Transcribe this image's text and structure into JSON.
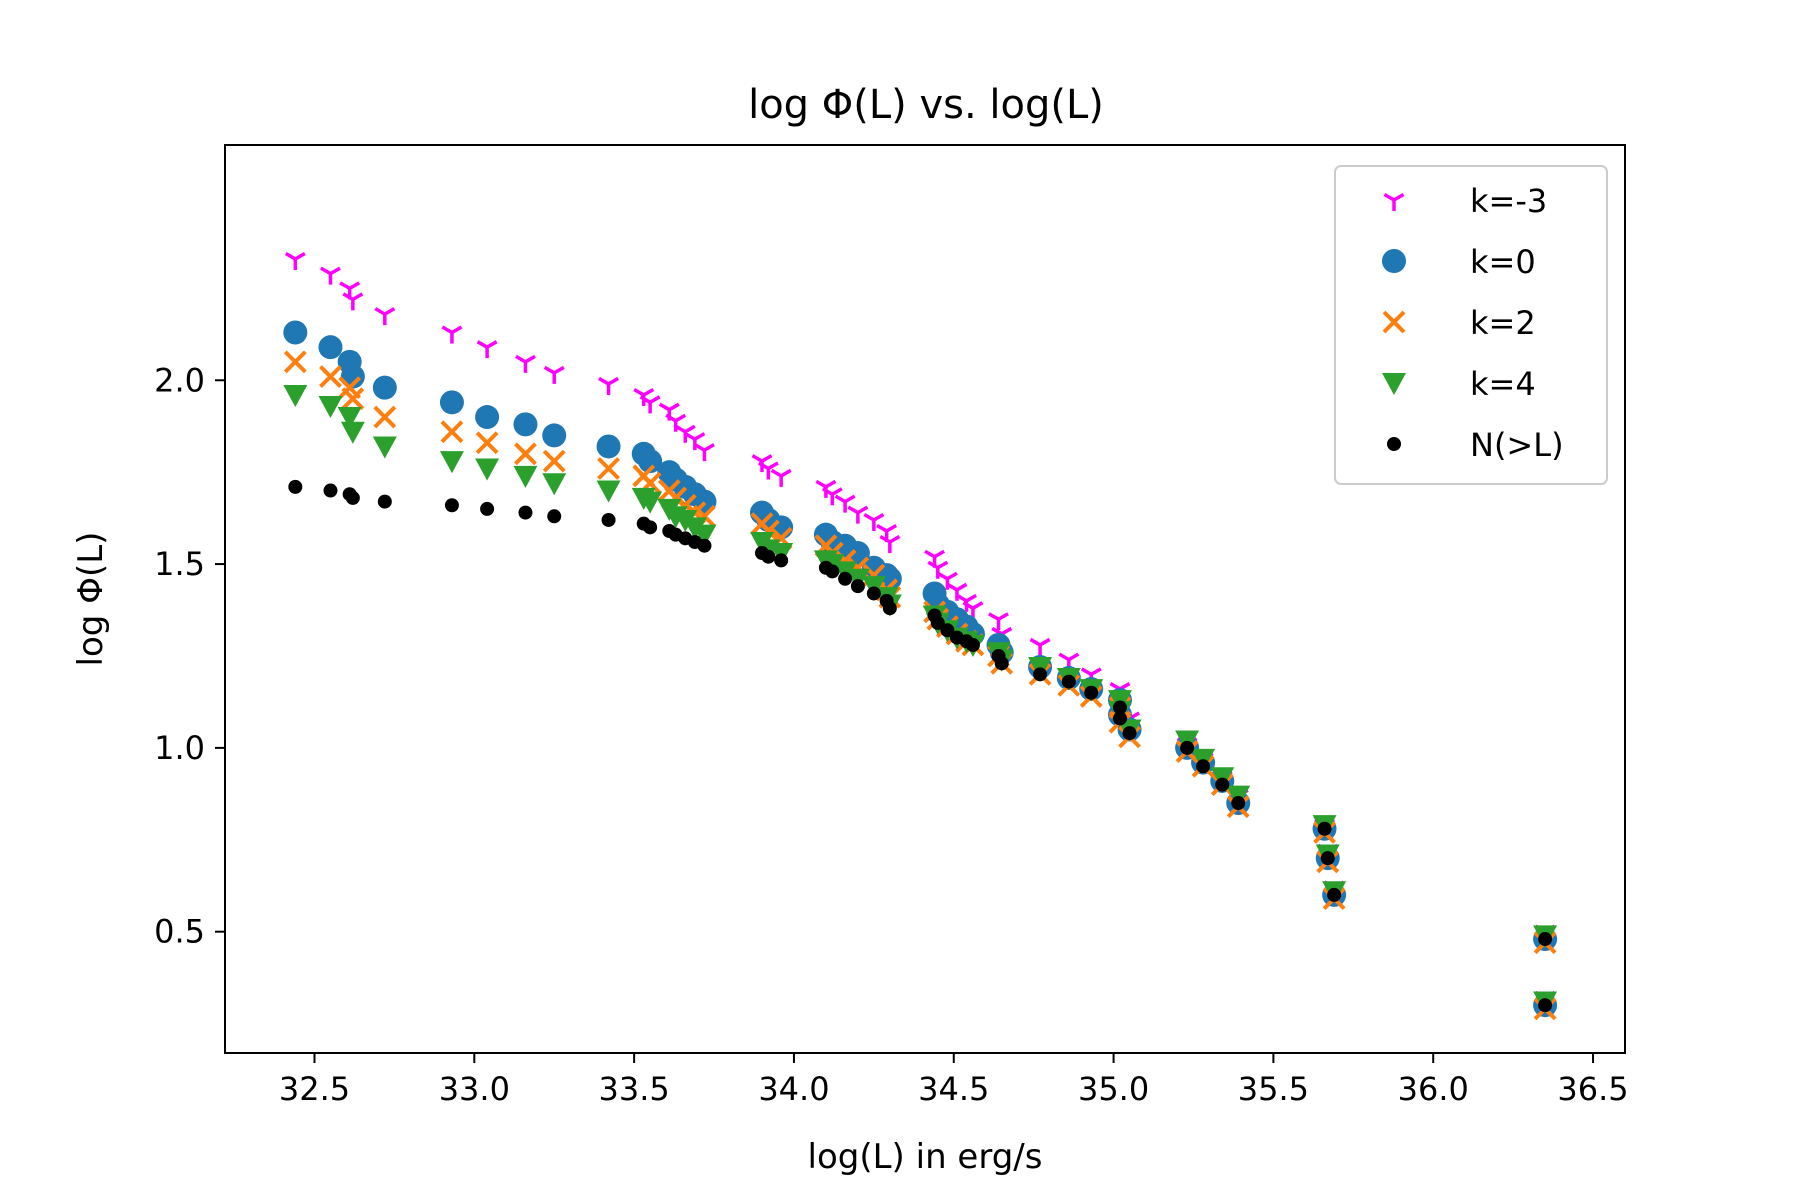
{
  "chart_data": {
    "type": "scatter",
    "title": "log Φ(L) vs. log(L)",
    "xlabel": "log(L) in erg/s",
    "ylabel": "log Φ(L)",
    "xlim": [
      32.22,
      36.6
    ],
    "ylim": [
      0.17,
      2.64
    ],
    "xticks": [
      32.5,
      33.0,
      33.5,
      34.0,
      34.5,
      35.0,
      35.5,
      36.0,
      36.5
    ],
    "yticks": [
      0.5,
      1.0,
      1.5,
      2.0
    ],
    "xtick_labels": [
      "32.5",
      "33.0",
      "33.5",
      "34.0",
      "34.5",
      "35.0",
      "35.5",
      "36.0",
      "36.5"
    ],
    "ytick_labels": [
      "0.5",
      "1.0",
      "1.5",
      "2.0"
    ],
    "grid": false,
    "legend_position": "top-right",
    "x": [
      32.44,
      32.55,
      32.61,
      32.62,
      32.72,
      32.93,
      33.04,
      33.16,
      33.25,
      33.42,
      33.53,
      33.55,
      33.61,
      33.63,
      33.66,
      33.69,
      33.72,
      33.9,
      33.92,
      33.96,
      34.1,
      34.12,
      34.16,
      34.2,
      34.25,
      34.29,
      34.3,
      34.44,
      34.45,
      34.48,
      34.51,
      34.54,
      34.56,
      34.64,
      34.65,
      34.77,
      34.86,
      34.93,
      35.02,
      35.02,
      35.05,
      35.23,
      35.28,
      35.34,
      35.39,
      35.66,
      35.67,
      35.69,
      36.35,
      36.35
    ],
    "series": [
      {
        "name": "k=-3",
        "marker": "tri_down",
        "color": "#ff00ff",
        "values": [
          2.33,
          2.29,
          2.25,
          2.22,
          2.18,
          2.13,
          2.09,
          2.05,
          2.02,
          1.99,
          1.96,
          1.94,
          1.92,
          1.89,
          1.86,
          1.84,
          1.81,
          1.78,
          1.76,
          1.74,
          1.71,
          1.69,
          1.67,
          1.64,
          1.62,
          1.59,
          1.56,
          1.52,
          1.49,
          1.46,
          1.43,
          1.4,
          1.38,
          1.35,
          1.31,
          1.28,
          1.24,
          1.2,
          1.16,
          1.12,
          1.08,
          1.01,
          0.97,
          0.92,
          0.87,
          0.79,
          0.72,
          0.62,
          0.5,
          0.32
        ]
      },
      {
        "name": "k=0",
        "marker": "circle",
        "color": "#1f77b4",
        "values": [
          2.13,
          2.09,
          2.05,
          2.01,
          1.98,
          1.94,
          1.9,
          1.88,
          1.85,
          1.82,
          1.8,
          1.78,
          1.75,
          1.73,
          1.71,
          1.69,
          1.67,
          1.64,
          1.62,
          1.6,
          1.58,
          1.56,
          1.55,
          1.53,
          1.49,
          1.47,
          1.46,
          1.42,
          1.39,
          1.37,
          1.35,
          1.33,
          1.31,
          1.28,
          1.26,
          1.22,
          1.19,
          1.16,
          1.13,
          1.09,
          1.05,
          1.0,
          0.96,
          0.91,
          0.85,
          0.78,
          0.7,
          0.6,
          0.48,
          0.3
        ]
      },
      {
        "name": "k=2",
        "marker": "x",
        "color": "#ff7f0e",
        "values": [
          2.05,
          2.01,
          1.98,
          1.95,
          1.9,
          1.86,
          1.83,
          1.8,
          1.78,
          1.76,
          1.74,
          1.72,
          1.7,
          1.68,
          1.66,
          1.64,
          1.63,
          1.61,
          1.59,
          1.57,
          1.55,
          1.53,
          1.51,
          1.49,
          1.47,
          1.43,
          1.41,
          1.37,
          1.35,
          1.33,
          1.31,
          1.29,
          1.28,
          1.25,
          1.23,
          1.2,
          1.17,
          1.14,
          1.11,
          1.07,
          1.03,
          0.99,
          0.95,
          0.9,
          0.84,
          0.77,
          0.69,
          0.59,
          0.47,
          0.29
        ]
      },
      {
        "name": "k=4",
        "marker": "triangle_down",
        "color": "#2ca02c",
        "values": [
          1.96,
          1.93,
          1.9,
          1.86,
          1.82,
          1.78,
          1.76,
          1.74,
          1.72,
          1.7,
          1.68,
          1.67,
          1.65,
          1.63,
          1.62,
          1.6,
          1.58,
          1.56,
          1.54,
          1.53,
          1.51,
          1.5,
          1.48,
          1.46,
          1.44,
          1.41,
          1.39,
          1.36,
          1.34,
          1.32,
          1.3,
          1.29,
          1.28,
          1.26,
          1.24,
          1.22,
          1.19,
          1.16,
          1.13,
          1.1,
          1.05,
          1.02,
          0.97,
          0.92,
          0.87,
          0.79,
          0.71,
          0.61,
          0.49,
          0.31
        ]
      },
      {
        "name": "N(>L)",
        "marker": "point",
        "color": "#000000",
        "values": [
          1.71,
          1.7,
          1.69,
          1.68,
          1.67,
          1.66,
          1.65,
          1.64,
          1.63,
          1.62,
          1.61,
          1.6,
          1.59,
          1.58,
          1.57,
          1.56,
          1.55,
          1.53,
          1.52,
          1.51,
          1.49,
          1.48,
          1.46,
          1.44,
          1.42,
          1.4,
          1.38,
          1.36,
          1.34,
          1.32,
          1.3,
          1.29,
          1.28,
          1.25,
          1.23,
          1.2,
          1.18,
          1.15,
          1.11,
          1.08,
          1.04,
          1.0,
          0.95,
          0.9,
          0.85,
          0.78,
          0.7,
          0.6,
          0.48,
          0.3
        ]
      }
    ]
  }
}
